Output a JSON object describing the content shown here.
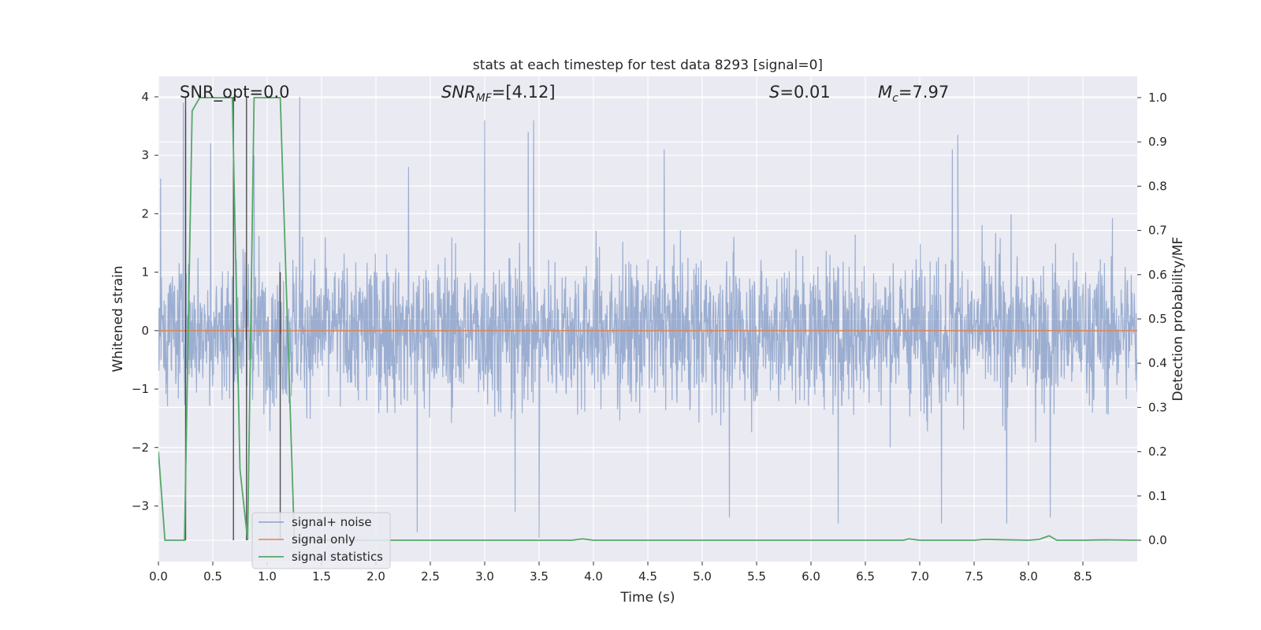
{
  "chart_data": {
    "type": "line",
    "title": "stats at each timestep for test data 8293 [signal=0]",
    "xlabel": "Time (s)",
    "ylabel": "Whitened strain",
    "y2label": "Detection probability/MF",
    "xlim": [
      0.0,
      9.0
    ],
    "ylim": [
      -3.95,
      4.35
    ],
    "y2lim": [
      -0.048,
      1.048
    ],
    "xticks": [
      0.0,
      0.5,
      1.0,
      1.5,
      2.0,
      2.5,
      3.0,
      3.5,
      4.0,
      4.5,
      5.0,
      5.5,
      6.0,
      6.5,
      7.0,
      7.5,
      8.0,
      8.5
    ],
    "xtick_labels": [
      "0.0",
      "0.5",
      "1.0",
      "1.5",
      "2.0",
      "2.5",
      "3.0",
      "3.5",
      "4.0",
      "4.5",
      "5.0",
      "5.5",
      "6.0",
      "6.5",
      "7.0",
      "7.5",
      "8.0",
      "8.5"
    ],
    "yticks": [
      -3,
      -2,
      -1,
      0,
      1,
      2,
      3,
      4
    ],
    "ytick_labels": [
      "−3",
      "−2",
      "−1",
      "0",
      "1",
      "2",
      "3",
      "4"
    ],
    "y2ticks": [
      0.0,
      0.1,
      0.2,
      0.3,
      0.4,
      0.5,
      0.6,
      0.7,
      0.8,
      0.9,
      1.0
    ],
    "y2tick_labels": [
      "0.0",
      "0.1",
      "0.2",
      "0.3",
      "0.4",
      "0.5",
      "0.6",
      "0.7",
      "0.8",
      "0.9",
      "1.0"
    ],
    "annotations": {
      "snr_opt": "SNR_opt=0.0",
      "snr_mf_label": "SNR",
      "snr_mf_sub": "MF",
      "snr_mf_value": "=[4.12]",
      "s_label": "S",
      "s_value": "=0.01",
      "mc_label": "M",
      "mc_sub": "c",
      "mc_value": "=7.97"
    },
    "legend": {
      "placement": "lower-left",
      "entries": [
        "signal+ noise",
        "signal only",
        "signal statistics"
      ]
    },
    "series": [
      {
        "name": "signal+ noise",
        "color": "#4c72b0",
        "opacity": 0.5,
        "description": "whitened strain noise, approx. range -3.5 to 4.0",
        "duration": 9.0,
        "spikes": [
          [
            0.02,
            2.6
          ],
          [
            0.23,
            3.9
          ],
          [
            0.25,
            3.8
          ],
          [
            0.48,
            3.2
          ],
          [
            0.88,
            3.0
          ],
          [
            1.3,
            4.0
          ],
          [
            2.3,
            2.8
          ],
          [
            3.0,
            3.6
          ],
          [
            3.4,
            3.4
          ],
          [
            3.45,
            3.6
          ],
          [
            4.65,
            3.1
          ],
          [
            7.3,
            3.1
          ],
          [
            7.35,
            3.35
          ],
          [
            2.38,
            -3.45
          ],
          [
            3.5,
            -3.55
          ],
          [
            3.28,
            -3.1
          ],
          [
            5.25,
            -3.2
          ],
          [
            6.25,
            -3.3
          ],
          [
            7.2,
            -3.3
          ],
          [
            7.8,
            -3.3
          ],
          [
            8.2,
            -3.2
          ]
        ]
      },
      {
        "name": "signal only",
        "color": "#dd8452",
        "values_x": [
          0.0,
          9.0
        ],
        "values_y": [
          0.0,
          0.0
        ]
      },
      {
        "name": "signal statistics",
        "color": "#55a868",
        "axis": "right",
        "x": [
          0.0,
          0.06,
          0.24,
          0.31,
          0.38,
          0.5,
          0.68,
          0.75,
          0.82,
          0.88,
          1.12,
          1.25,
          1.5,
          2.0,
          3.0,
          3.8,
          3.9,
          4.0,
          5.0,
          6.0,
          6.85,
          6.9,
          7.0,
          7.5,
          7.6,
          8.0,
          8.1,
          8.19,
          8.26,
          8.5,
          8.7,
          9.0
        ],
        "y": [
          0.2,
          0.0,
          0.0,
          0.97,
          1.0,
          1.0,
          1.0,
          0.16,
          0.0,
          1.0,
          1.0,
          0.0,
          0.0,
          0.0,
          0.0,
          0.0,
          0.003,
          0.0,
          0.0,
          0.0,
          0.0,
          0.003,
          0.0,
          0.0,
          0.002,
          0.0,
          0.002,
          0.01,
          0.0,
          0.0,
          0.001,
          0.0
        ]
      }
    ],
    "vertical_lines": {
      "color": "#333333",
      "x": [
        0.25,
        0.69,
        0.81,
        1.12
      ],
      "y_top": [
        4.0,
        4.0,
        4.0,
        1.0
      ]
    }
  }
}
